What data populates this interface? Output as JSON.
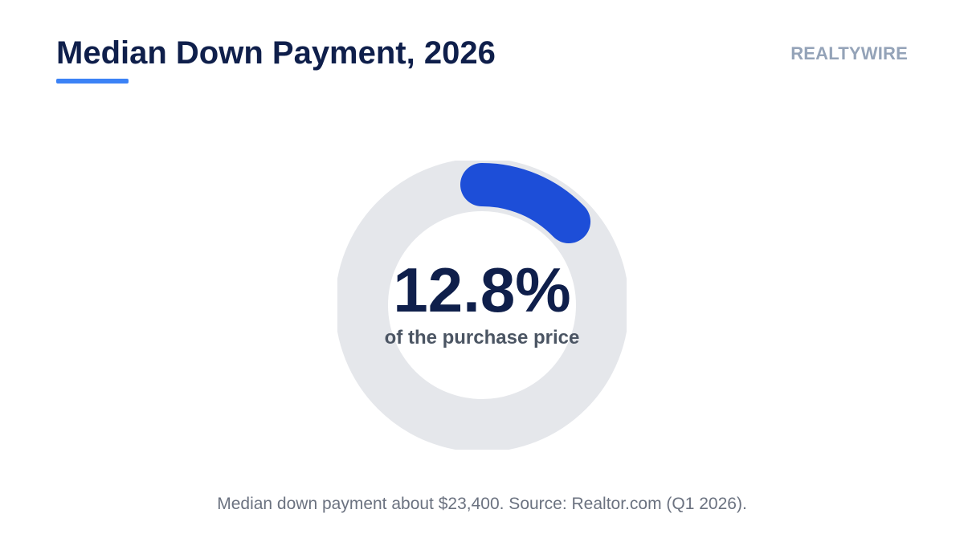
{
  "header": {
    "title": "Median Down Payment, 2026",
    "brand": "REALTYWIRE"
  },
  "chart_data": {
    "type": "pie",
    "variant": "donut",
    "value_percent": 12.8,
    "max_percent": 100,
    "value_label": "12.8%",
    "caption": "of the purchase price"
  },
  "footnote": "Median down payment about $23,400. Source: Realtor.com (Q1 2026).",
  "colors": {
    "accent": "#1d4ed8",
    "underline": "#3b82f6",
    "track": "#e5e7eb",
    "title": "#0f1f4b",
    "brand": "#94a3b8",
    "caption": "#4b5563",
    "footnote": "#6b7280"
  }
}
